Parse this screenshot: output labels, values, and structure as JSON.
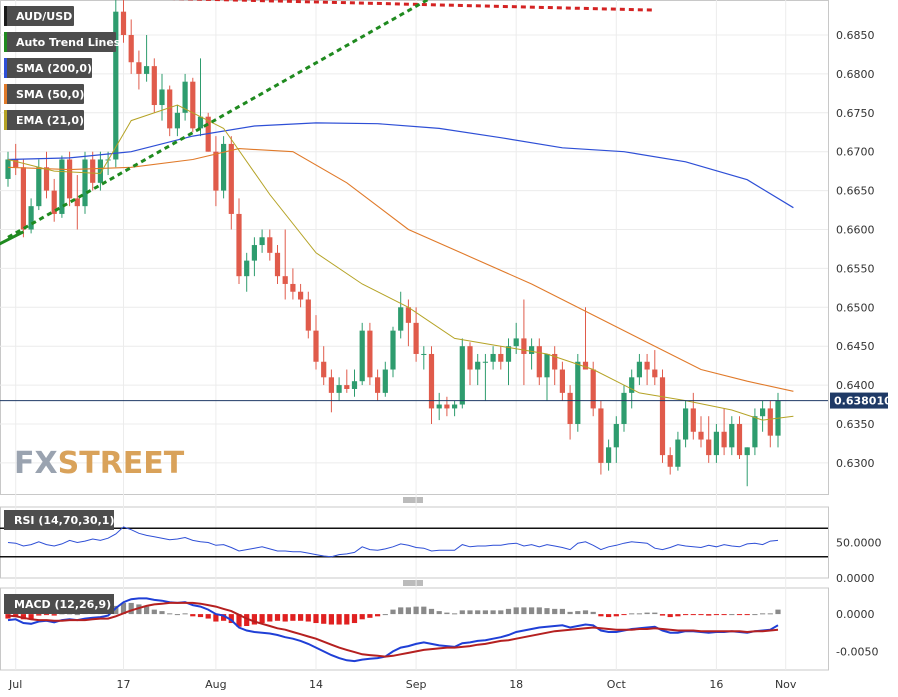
{
  "chart_data": {
    "type": "candlestick",
    "symbol": "AUD/USD",
    "last_price_label": "0.638010",
    "price_axis": {
      "ylim": [
        0.626,
        0.6895
      ],
      "ticks": [
        "0.6850",
        "0.6800",
        "0.6750",
        "0.6700",
        "0.6650",
        "0.6600",
        "0.6550",
        "0.6500",
        "0.6450",
        "0.6400",
        "0.6350",
        "0.6300"
      ]
    },
    "x_labels": [
      "Jul",
      "17",
      "Aug",
      "14",
      "Sep",
      "18",
      "Oct",
      "16",
      "Nov"
    ],
    "legend": [
      {
        "label": "AUD/USD",
        "color": "#1a1a1a"
      },
      {
        "label": "Auto Trend Lines",
        "color": "#1f8a1f"
      },
      {
        "label": "SMA (200,0)",
        "color": "#2e4fd6"
      },
      {
        "label": "SMA (50,0)",
        "color": "#e07a2a"
      },
      {
        "label": "EMA (21,0)",
        "color": "#b5a326"
      }
    ],
    "candles": [
      [
        0.6665,
        0.67,
        0.6655,
        0.669
      ],
      [
        0.669,
        0.671,
        0.667,
        0.668
      ],
      [
        0.668,
        0.669,
        0.659,
        0.66
      ],
      [
        0.66,
        0.664,
        0.6595,
        0.663
      ],
      [
        0.663,
        0.669,
        0.6625,
        0.668
      ],
      [
        0.668,
        0.67,
        0.664,
        0.665
      ],
      [
        0.665,
        0.6665,
        0.661,
        0.662
      ],
      [
        0.662,
        0.6695,
        0.6615,
        0.669
      ],
      [
        0.669,
        0.67,
        0.663,
        0.664
      ],
      [
        0.664,
        0.667,
        0.66,
        0.663
      ],
      [
        0.663,
        0.67,
        0.662,
        0.669
      ],
      [
        0.669,
        0.67,
        0.665,
        0.666
      ],
      [
        0.666,
        0.67,
        0.665,
        0.669
      ],
      [
        0.669,
        0.67,
        0.667,
        0.669
      ],
      [
        0.669,
        0.69,
        0.668,
        0.688
      ],
      [
        0.688,
        0.6895,
        0.684,
        0.685
      ],
      [
        0.685,
        0.687,
        0.68,
        0.6815
      ],
      [
        0.6815,
        0.683,
        0.678,
        0.68
      ],
      [
        0.68,
        0.685,
        0.679,
        0.681
      ],
      [
        0.681,
        0.682,
        0.675,
        0.676
      ],
      [
        0.676,
        0.68,
        0.674,
        0.678
      ],
      [
        0.678,
        0.6785,
        0.672,
        0.673
      ],
      [
        0.673,
        0.676,
        0.672,
        0.675
      ],
      [
        0.675,
        0.68,
        0.674,
        0.679
      ],
      [
        0.679,
        0.6795,
        0.6725,
        0.673
      ],
      [
        0.673,
        0.682,
        0.672,
        0.6745
      ],
      [
        0.6745,
        0.675,
        0.67,
        0.67
      ],
      [
        0.67,
        0.672,
        0.663,
        0.665
      ],
      [
        0.665,
        0.672,
        0.664,
        0.671
      ],
      [
        0.671,
        0.672,
        0.66,
        0.662
      ],
      [
        0.662,
        0.664,
        0.653,
        0.654
      ],
      [
        0.654,
        0.657,
        0.652,
        0.656
      ],
      [
        0.656,
        0.659,
        0.654,
        0.658
      ],
      [
        0.658,
        0.66,
        0.657,
        0.659
      ],
      [
        0.659,
        0.66,
        0.656,
        0.657
      ],
      [
        0.657,
        0.658,
        0.653,
        0.654
      ],
      [
        0.654,
        0.66,
        0.651,
        0.653
      ],
      [
        0.653,
        0.655,
        0.651,
        0.652
      ],
      [
        0.652,
        0.653,
        0.65,
        0.651
      ],
      [
        0.651,
        0.652,
        0.646,
        0.647
      ],
      [
        0.647,
        0.649,
        0.642,
        0.643
      ],
      [
        0.643,
        0.645,
        0.64,
        0.641
      ],
      [
        0.641,
        0.642,
        0.6365,
        0.639
      ],
      [
        0.639,
        0.641,
        0.638,
        0.64
      ],
      [
        0.64,
        0.642,
        0.639,
        0.6395
      ],
      [
        0.6395,
        0.642,
        0.6385,
        0.6405
      ],
      [
        0.6405,
        0.648,
        0.64,
        0.647
      ],
      [
        0.647,
        0.648,
        0.64,
        0.641
      ],
      [
        0.641,
        0.642,
        0.638,
        0.639
      ],
      [
        0.639,
        0.643,
        0.6385,
        0.642
      ],
      [
        0.642,
        0.6475,
        0.641,
        0.647
      ],
      [
        0.647,
        0.652,
        0.646,
        0.65
      ],
      [
        0.65,
        0.651,
        0.645,
        0.648
      ],
      [
        0.648,
        0.65,
        0.643,
        0.644
      ],
      [
        0.644,
        0.645,
        0.642,
        0.644
      ],
      [
        0.644,
        0.645,
        0.635,
        0.637
      ],
      [
        0.637,
        0.639,
        0.6355,
        0.6375
      ],
      [
        0.6375,
        0.6385,
        0.636,
        0.637
      ],
      [
        0.637,
        0.638,
        0.636,
        0.6375
      ],
      [
        0.6375,
        0.646,
        0.637,
        0.645
      ],
      [
        0.645,
        0.6455,
        0.64,
        0.642
      ],
      [
        0.642,
        0.644,
        0.64,
        0.643
      ],
      [
        0.643,
        0.644,
        0.638,
        0.643
      ],
      [
        0.643,
        0.645,
        0.642,
        0.644
      ],
      [
        0.644,
        0.645,
        0.642,
        0.643
      ],
      [
        0.643,
        0.646,
        0.64,
        0.645
      ],
      [
        0.645,
        0.648,
        0.644,
        0.646
      ],
      [
        0.646,
        0.651,
        0.64,
        0.644
      ],
      [
        0.644,
        0.646,
        0.642,
        0.645
      ],
      [
        0.645,
        0.646,
        0.64,
        0.641
      ],
      [
        0.641,
        0.644,
        0.638,
        0.644
      ],
      [
        0.644,
        0.645,
        0.64,
        0.642
      ],
      [
        0.642,
        0.643,
        0.638,
        0.639
      ],
      [
        0.639,
        0.64,
        0.633,
        0.635
      ],
      [
        0.635,
        0.644,
        0.634,
        0.643
      ],
      [
        0.643,
        0.65,
        0.642,
        0.642
      ],
      [
        0.642,
        0.643,
        0.636,
        0.637
      ],
      [
        0.637,
        0.638,
        0.6285,
        0.63
      ],
      [
        0.63,
        0.633,
        0.629,
        0.632
      ],
      [
        0.632,
        0.636,
        0.63,
        0.635
      ],
      [
        0.635,
        0.64,
        0.634,
        0.639
      ],
      [
        0.639,
        0.642,
        0.637,
        0.641
      ],
      [
        0.641,
        0.644,
        0.64,
        0.643
      ],
      [
        0.643,
        0.644,
        0.64,
        0.642
      ],
      [
        0.642,
        0.6445,
        0.64,
        0.641
      ],
      [
        0.641,
        0.642,
        0.63,
        0.631
      ],
      [
        0.631,
        0.632,
        0.6285,
        0.6295
      ],
      [
        0.6295,
        0.634,
        0.629,
        0.633
      ],
      [
        0.633,
        0.638,
        0.632,
        0.637
      ],
      [
        0.637,
        0.639,
        0.633,
        0.634
      ],
      [
        0.634,
        0.636,
        0.632,
        0.633
      ],
      [
        0.633,
        0.636,
        0.63,
        0.631
      ],
      [
        0.631,
        0.635,
        0.63,
        0.634
      ],
      [
        0.634,
        0.637,
        0.631,
        0.632
      ],
      [
        0.632,
        0.636,
        0.631,
        0.635
      ],
      [
        0.635,
        0.636,
        0.6305,
        0.631
      ],
      [
        0.631,
        0.632,
        0.627,
        0.632
      ],
      [
        0.632,
        0.637,
        0.631,
        0.636
      ],
      [
        0.636,
        0.638,
        0.634,
        0.637
      ],
      [
        0.637,
        0.638,
        0.632,
        0.6335
      ],
      [
        0.6335,
        0.639,
        0.632,
        0.638
      ]
    ],
    "sma200": [
      [
        0,
        0.669
      ],
      [
        8,
        0.6692
      ],
      [
        16,
        0.67
      ],
      [
        24,
        0.672
      ],
      [
        32,
        0.6733
      ],
      [
        40,
        0.6737
      ],
      [
        48,
        0.6736
      ],
      [
        56,
        0.673
      ],
      [
        64,
        0.6718
      ],
      [
        72,
        0.6705
      ],
      [
        80,
        0.67
      ],
      [
        88,
        0.6687
      ],
      [
        96,
        0.6664
      ],
      [
        102,
        0.6628
      ]
    ],
    "sma50": [
      [
        0,
        0.668
      ],
      [
        8,
        0.6677
      ],
      [
        16,
        0.668
      ],
      [
        24,
        0.669
      ],
      [
        30,
        0.6704
      ],
      [
        37,
        0.67
      ],
      [
        44,
        0.666
      ],
      [
        52,
        0.66
      ],
      [
        60,
        0.6565
      ],
      [
        68,
        0.653
      ],
      [
        76,
        0.649
      ],
      [
        84,
        0.645
      ],
      [
        90,
        0.642
      ],
      [
        96,
        0.6405
      ],
      [
        102,
        0.6392
      ]
    ],
    "ema21": [
      [
        0,
        0.669
      ],
      [
        6,
        0.6675
      ],
      [
        12,
        0.6672
      ],
      [
        16,
        0.674
      ],
      [
        22,
        0.676
      ],
      [
        28,
        0.673
      ],
      [
        34,
        0.6645
      ],
      [
        40,
        0.657
      ],
      [
        46,
        0.653
      ],
      [
        52,
        0.65
      ],
      [
        58,
        0.646
      ],
      [
        64,
        0.645
      ],
      [
        70,
        0.644
      ],
      [
        76,
        0.642
      ],
      [
        82,
        0.639
      ],
      [
        88,
        0.638
      ],
      [
        94,
        0.6368
      ],
      [
        98,
        0.6355
      ],
      [
        102,
        0.636
      ]
    ],
    "trend_lines": [
      {
        "color": "#d42222",
        "from": [
          0,
          0.6902
        ],
        "to": [
          84,
          0.6882
        ]
      },
      {
        "color": "#1f8a1f",
        "from": [
          0,
          0.659
        ],
        "to": [
          58,
          0.6915
        ]
      },
      {
        "color": "#1f8a1f",
        "from": [
          -2,
          0.6577
        ],
        "to": [
          2,
          0.6597
        ],
        "solid": true
      }
    ],
    "rsi": {
      "label": "RSI (14,70,30,1)",
      "ticks": [
        "50.0000",
        "0.0000"
      ],
      "upper": 70,
      "lower": 30,
      "ylim": [
        0,
        100
      ],
      "values": [
        50,
        49,
        45,
        47,
        51,
        47,
        45,
        48,
        53,
        50,
        52,
        55,
        53,
        56,
        62,
        72,
        68,
        63,
        60,
        58,
        56,
        54,
        55,
        57,
        53,
        51,
        50,
        46,
        47,
        43,
        38,
        40,
        42,
        44,
        41,
        38,
        38,
        37,
        37,
        35,
        33,
        31,
        30,
        33,
        34,
        36,
        44,
        40,
        39,
        41,
        44,
        48,
        46,
        43,
        42,
        38,
        39,
        39,
        39,
        47,
        44,
        45,
        45,
        46,
        46,
        48,
        49,
        45,
        47,
        44,
        47,
        45,
        43,
        40,
        49,
        51,
        46,
        40,
        44,
        46,
        49,
        51,
        50,
        49,
        42,
        40,
        43,
        47,
        45,
        44,
        43,
        46,
        44,
        47,
        45,
        44,
        48,
        49,
        47,
        52,
        53
      ]
    },
    "macd": {
      "label": "MACD (12,26,9)",
      "ticks": [
        "0.0000",
        "-0.0050"
      ],
      "ylim": [
        -0.0075,
        0.0035
      ],
      "macd": [
        -0.0008,
        -0.0007,
        -0.0012,
        -0.0013,
        -0.001,
        -0.0009,
        -0.0011,
        -0.0008,
        -0.0007,
        -0.0008,
        -0.0006,
        -0.0005,
        -0.0004,
        -0.0002,
        0.0008,
        0.0016,
        0.002,
        0.0021,
        0.0021,
        0.0019,
        0.0018,
        0.0016,
        0.0015,
        0.0016,
        0.0012,
        0.001,
        0.0006,
        0.0,
        -0.0002,
        -0.0008,
        -0.0018,
        -0.0022,
        -0.0024,
        -0.0025,
        -0.0026,
        -0.0028,
        -0.0031,
        -0.0033,
        -0.0036,
        -0.004,
        -0.0045,
        -0.005,
        -0.0055,
        -0.0059,
        -0.0062,
        -0.0063,
        -0.0061,
        -0.006,
        -0.0059,
        -0.0057,
        -0.005,
        -0.0045,
        -0.0043,
        -0.004,
        -0.0038,
        -0.004,
        -0.0042,
        -0.0043,
        -0.0044,
        -0.0039,
        -0.0038,
        -0.0036,
        -0.0035,
        -0.0033,
        -0.0031,
        -0.0028,
        -0.0024,
        -0.0022,
        -0.002,
        -0.0018,
        -0.0017,
        -0.0016,
        -0.0015,
        -0.0018,
        -0.0016,
        -0.0014,
        -0.0015,
        -0.0022,
        -0.0024,
        -0.0024,
        -0.0022,
        -0.002,
        -0.0019,
        -0.0018,
        -0.0017,
        -0.0022,
        -0.0025,
        -0.0025,
        -0.0023,
        -0.0023,
        -0.0024,
        -0.0025,
        -0.0024,
        -0.0024,
        -0.0023,
        -0.0024,
        -0.0025,
        -0.0023,
        -0.0022,
        -0.0021,
        -0.0015
      ],
      "signal": [
        -0.0002,
        -0.0003,
        -0.0005,
        -0.0007,
        -0.0008,
        -0.0008,
        -0.0009,
        -0.0009,
        -0.0008,
        -0.0008,
        -0.0008,
        -0.0007,
        -0.0006,
        -0.0006,
        -0.0003,
        0.0001,
        0.0005,
        0.0008,
        0.0011,
        0.0013,
        0.0014,
        0.0015,
        0.0015,
        0.0015,
        0.0015,
        0.0014,
        0.0012,
        0.001,
        0.0007,
        0.0004,
        -0.0001,
        -0.0006,
        -0.001,
        -0.0013,
        -0.0016,
        -0.0019,
        -0.0021,
        -0.0024,
        -0.0027,
        -0.003,
        -0.0033,
        -0.0037,
        -0.0041,
        -0.0045,
        -0.0048,
        -0.0051,
        -0.0054,
        -0.0055,
        -0.0056,
        -0.0057,
        -0.0056,
        -0.0054,
        -0.0052,
        -0.005,
        -0.0048,
        -0.0047,
        -0.0046,
        -0.0045,
        -0.0045,
        -0.0044,
        -0.0043,
        -0.0041,
        -0.004,
        -0.0038,
        -0.0036,
        -0.0035,
        -0.0033,
        -0.0031,
        -0.0029,
        -0.0027,
        -0.0025,
        -0.0023,
        -0.0022,
        -0.0021,
        -0.002,
        -0.0019,
        -0.0018,
        -0.0019,
        -0.002,
        -0.0021,
        -0.0021,
        -0.0021,
        -0.002,
        -0.002,
        -0.0019,
        -0.002,
        -0.0021,
        -0.0022,
        -0.0022,
        -0.0022,
        -0.0023,
        -0.0023,
        -0.0023,
        -0.0023,
        -0.0023,
        -0.0023,
        -0.0024,
        -0.0023,
        -0.0023,
        -0.0022,
        -0.0021
      ]
    },
    "watermark": {
      "part1": "FX",
      "part2": "STREET"
    },
    "colors": {
      "up": "#2e9c6e",
      "down": "#e05b4b",
      "sma200": "#2e4fd6",
      "sma50": "#e07a2a",
      "ema21": "#b5a326",
      "macd": "#1f3fd6",
      "signal": "#b52020",
      "hist_pos": "#8a8a8a",
      "hist_neg": "#e02020"
    }
  }
}
